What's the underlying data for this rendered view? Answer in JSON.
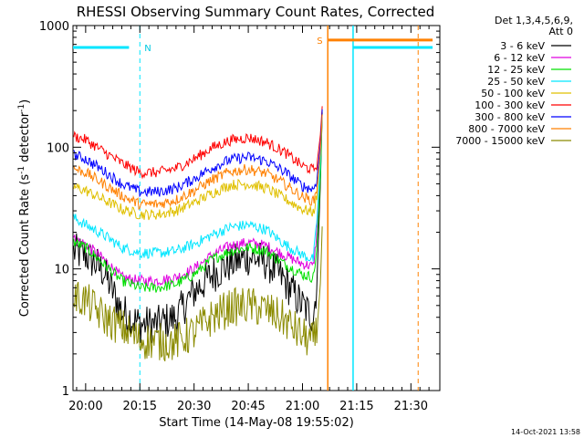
{
  "chart_data": {
    "type": "line",
    "title": "RHESSI Observing Summary Count Rates, Corrected",
    "xlabel": "Start Time (14-May-08 19:55:02)",
    "ylabel": "Corrected Count Rate (s-1 detector-1)",
    "ylabel_parts": {
      "a": "Corrected Count Rate (s",
      "b": "-1",
      "c": " detector",
      "d": "-1",
      "e": ")"
    },
    "y_scale": "log",
    "ylim": [
      1,
      1000
    ],
    "xlim_minutes": [
      -3.5,
      98
    ],
    "x_ticks": [
      {
        "t": 0,
        "label": "20:00"
      },
      {
        "t": 15,
        "label": "20:15"
      },
      {
        "t": 30,
        "label": "20:30"
      },
      {
        "t": 45,
        "label": "20:45"
      },
      {
        "t": 60,
        "label": "21:00"
      },
      {
        "t": 75,
        "label": "21:15"
      },
      {
        "t": 90,
        "label": "21:30"
      }
    ],
    "y_ticks": [
      {
        "v": 1,
        "label": "1"
      },
      {
        "v": 10,
        "label": "10"
      },
      {
        "v": 100,
        "label": "100"
      },
      {
        "v": 1000,
        "label": "1000"
      }
    ],
    "legend_header": [
      "Det 1,3,4,5,6,9,",
      "Att 0"
    ],
    "series": [
      {
        "name": "3 - 6 keV",
        "color": "#000000",
        "knots": [
          [
            -4,
            14
          ],
          [
            0,
            13
          ],
          [
            5,
            9.5
          ],
          [
            10,
            4.5
          ],
          [
            15,
            3.5
          ],
          [
            20,
            3.5
          ],
          [
            25,
            4
          ],
          [
            30,
            6.5
          ],
          [
            35,
            9
          ],
          [
            40,
            11
          ],
          [
            45,
            12.5
          ],
          [
            50,
            11.5
          ],
          [
            55,
            8
          ],
          [
            60,
            5
          ],
          [
            63,
            4
          ],
          [
            64,
            8
          ],
          [
            65,
            55
          ],
          [
            65.5,
            220
          ]
        ]
      },
      {
        "name": "6 - 12 keV",
        "color": "#e000e0",
        "knots": [
          [
            -4,
            18
          ],
          [
            0,
            16
          ],
          [
            5,
            12
          ],
          [
            10,
            8.5
          ],
          [
            15,
            8
          ],
          [
            20,
            8
          ],
          [
            25,
            8.5
          ],
          [
            30,
            10
          ],
          [
            35,
            13
          ],
          [
            40,
            15.5
          ],
          [
            45,
            16.5
          ],
          [
            50,
            15.5
          ],
          [
            55,
            13
          ],
          [
            60,
            11
          ],
          [
            63,
            10.5
          ],
          [
            64,
            20
          ],
          [
            65,
            70
          ],
          [
            65.5,
            220
          ]
        ]
      },
      {
        "name": "12 - 25 keV",
        "color": "#00e000",
        "knots": [
          [
            -4,
            17
          ],
          [
            0,
            15
          ],
          [
            5,
            11
          ],
          [
            10,
            8
          ],
          [
            15,
            7
          ],
          [
            20,
            7
          ],
          [
            25,
            7.5
          ],
          [
            30,
            9
          ],
          [
            35,
            12
          ],
          [
            40,
            14
          ],
          [
            45,
            15
          ],
          [
            50,
            14
          ],
          [
            55,
            11
          ],
          [
            60,
            9
          ],
          [
            63,
            8.5
          ],
          [
            64,
            15
          ],
          [
            65,
            60
          ],
          [
            65.5,
            220
          ]
        ]
      },
      {
        "name": "25 - 50 keV",
        "color": "#00e6ff",
        "knots": [
          [
            -4,
            27
          ],
          [
            0,
            23
          ],
          [
            5,
            19
          ],
          [
            10,
            15
          ],
          [
            15,
            13.5
          ],
          [
            20,
            13.5
          ],
          [
            25,
            14
          ],
          [
            30,
            16
          ],
          [
            35,
            19
          ],
          [
            40,
            22
          ],
          [
            45,
            23
          ],
          [
            50,
            21
          ],
          [
            55,
            16
          ],
          [
            60,
            13
          ],
          [
            63,
            12
          ],
          [
            64,
            25
          ],
          [
            65,
            80
          ],
          [
            65.5,
            220
          ]
        ]
      },
      {
        "name": "50 - 100 keV",
        "color": "#e0c000",
        "knots": [
          [
            -4,
            48
          ],
          [
            0,
            44
          ],
          [
            5,
            37
          ],
          [
            10,
            31
          ],
          [
            15,
            28
          ],
          [
            20,
            28
          ],
          [
            25,
            30
          ],
          [
            30,
            35
          ],
          [
            35,
            42
          ],
          [
            40,
            49
          ],
          [
            45,
            50
          ],
          [
            50,
            46
          ],
          [
            55,
            38
          ],
          [
            60,
            31
          ],
          [
            63,
            29
          ],
          [
            64,
            40
          ],
          [
            65,
            100
          ],
          [
            65.5,
            220
          ]
        ]
      },
      {
        "name": "100 - 300 keV",
        "color": "#ff0000",
        "knots": [
          [
            -4,
            125
          ],
          [
            0,
            115
          ],
          [
            5,
            92
          ],
          [
            10,
            74
          ],
          [
            15,
            62
          ],
          [
            20,
            62
          ],
          [
            25,
            67
          ],
          [
            30,
            80
          ],
          [
            35,
            99
          ],
          [
            40,
            114
          ],
          [
            45,
            120
          ],
          [
            50,
            110
          ],
          [
            55,
            91
          ],
          [
            60,
            70
          ],
          [
            63,
            65
          ],
          [
            64,
            72
          ],
          [
            65,
            130
          ],
          [
            65.5,
            230
          ]
        ]
      },
      {
        "name": "300 - 800 keV",
        "color": "#0000ff",
        "knots": [
          [
            -4,
            88
          ],
          [
            0,
            80
          ],
          [
            5,
            64
          ],
          [
            10,
            50
          ],
          [
            15,
            43
          ],
          [
            20,
            43
          ],
          [
            25,
            46
          ],
          [
            30,
            55
          ],
          [
            35,
            68
          ],
          [
            40,
            79
          ],
          [
            45,
            83
          ],
          [
            50,
            77
          ],
          [
            55,
            63
          ],
          [
            60,
            48
          ],
          [
            63,
            45
          ],
          [
            64,
            55
          ],
          [
            65,
            110
          ],
          [
            65.5,
            220
          ]
        ]
      },
      {
        "name": "800 - 7000 keV",
        "color": "#ff8000",
        "knots": [
          [
            -4,
            68
          ],
          [
            0,
            62
          ],
          [
            5,
            50
          ],
          [
            10,
            40
          ],
          [
            15,
            34
          ],
          [
            20,
            34
          ],
          [
            25,
            37
          ],
          [
            30,
            44
          ],
          [
            35,
            54
          ],
          [
            40,
            63
          ],
          [
            45,
            66
          ],
          [
            50,
            61
          ],
          [
            55,
            50
          ],
          [
            60,
            39
          ],
          [
            63,
            36
          ],
          [
            64,
            45
          ],
          [
            65,
            95
          ],
          [
            65.5,
            200
          ]
        ]
      },
      {
        "name": "7000 - 15000 keV",
        "color": "#8b8b00",
        "knots": [
          [
            -4,
            6
          ],
          [
            0,
            5.5
          ],
          [
            5,
            4
          ],
          [
            10,
            3.3
          ],
          [
            15,
            2.6
          ],
          [
            20,
            2.5
          ],
          [
            25,
            2.5
          ],
          [
            30,
            3
          ],
          [
            35,
            4
          ],
          [
            40,
            4.8
          ],
          [
            45,
            5
          ],
          [
            50,
            4.6
          ],
          [
            55,
            3.8
          ],
          [
            60,
            2.8
          ],
          [
            63,
            2.5
          ],
          [
            64,
            3
          ],
          [
            65,
            8
          ],
          [
            65.5,
            25
          ]
        ]
      }
    ],
    "marks": {
      "night_label": "N",
      "saa_label": "S",
      "dashed_vlines_t": [
        15,
        92
      ],
      "solid_vlines_t": [
        67,
        74
      ],
      "night_segments": [
        [
          -3.5,
          12
        ],
        [
          74,
          96
        ]
      ],
      "saa_segment": [
        67,
        96
      ],
      "night_level": 660,
      "saa_level": 760
    }
  },
  "timestamp": "14-Oct-2021 13:58"
}
